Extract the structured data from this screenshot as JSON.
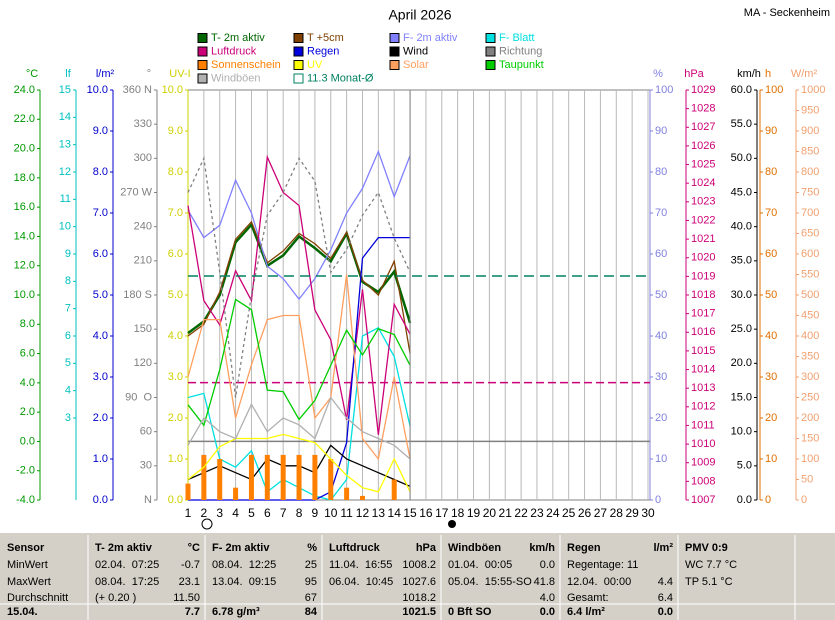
{
  "chart_data": {
    "type": "line",
    "title": "April 2026",
    "subtitle": "MA - Seckenheim",
    "x": [
      1,
      2,
      3,
      4,
      5,
      6,
      7,
      8,
      9,
      10,
      11,
      12,
      13,
      14,
      15
    ],
    "xlim": [
      1,
      30
    ],
    "xticks": [
      1,
      2,
      3,
      4,
      5,
      6,
      7,
      8,
      9,
      10,
      11,
      12,
      13,
      14,
      15,
      16,
      17,
      18,
      19,
      20,
      21,
      22,
      23,
      24,
      25,
      26,
      27,
      28,
      29,
      30
    ],
    "grid": true,
    "axes": [
      {
        "label": "°C",
        "color": "#009900",
        "lim": [
          -4,
          24
        ],
        "ticks": [
          {
            "value": -4,
            "label": "-4.0"
          },
          {
            "value": -2,
            "label": "-2.0"
          },
          {
            "value": 0,
            "label": "0.0"
          },
          {
            "value": 2,
            "label": "2.0"
          },
          {
            "value": 4,
            "label": "4.0"
          },
          {
            "value": 6,
            "label": "6.0"
          },
          {
            "value": 8,
            "label": "8.0"
          },
          {
            "value": 10,
            "label": "10.0"
          },
          {
            "value": 12,
            "label": "12.0"
          },
          {
            "value": 14,
            "label": "14.0"
          },
          {
            "value": 16,
            "label": "16.0"
          },
          {
            "value": 18,
            "label": "18.0"
          },
          {
            "value": 20,
            "label": "20.0"
          },
          {
            "value": 22,
            "label": "22.0"
          },
          {
            "value": 24,
            "label": "24.0"
          }
        ]
      },
      {
        "label": "lf",
        "color": "#00c0c0",
        "lim": [
          0,
          15
        ],
        "ticks": [
          3,
          4,
          5,
          6,
          7,
          8,
          9,
          10,
          11,
          12,
          13,
          14,
          15
        ]
      },
      {
        "label": "l/m²",
        "color": "#0000cc",
        "lim": [
          0,
          10
        ],
        "ticks": [
          {
            "value": 0,
            "label": "0.0"
          },
          {
            "value": 1,
            "label": "1.0"
          },
          {
            "value": 2,
            "label": "2.0"
          },
          {
            "value": 3,
            "label": "3.0"
          },
          {
            "value": 4,
            "label": "4.0"
          },
          {
            "value": 5,
            "label": "5.0"
          },
          {
            "value": 6,
            "label": "6.0"
          },
          {
            "value": 7,
            "label": "7.0"
          },
          {
            "value": 8,
            "label": "8.0"
          },
          {
            "value": 9,
            "label": "9.0"
          },
          {
            "value": 10,
            "label": "10.0"
          }
        ]
      },
      {
        "label": "°",
        "color": "#808080",
        "lim": [
          0,
          360
        ],
        "ticks": [
          {
            "value": 0,
            "label": "N"
          },
          30,
          60,
          {
            "value": 90,
            "label": "90  O"
          },
          120,
          150,
          {
            "value": 180,
            "label": "180 S"
          },
          210,
          240,
          {
            "value": 270,
            "label": "270 W"
          },
          300,
          330,
          {
            "value": 360,
            "label": "360 N"
          }
        ]
      },
      {
        "label": "UV-I",
        "color": "#d0d000",
        "lim": [
          0,
          10
        ],
        "ticks": [
          {
            "value": 0,
            "label": "0.0"
          },
          {
            "value": 1,
            "label": "1.0"
          },
          {
            "value": 2,
            "label": "2.0"
          },
          {
            "value": 3,
            "label": "3.0"
          },
          {
            "value": 4,
            "label": "4.0"
          },
          {
            "value": 5,
            "label": "5.0"
          },
          {
            "value": 6,
            "label": "6.0"
          },
          {
            "value": 7,
            "label": "7.0"
          },
          {
            "value": 8,
            "label": "8.0"
          },
          {
            "value": 9,
            "label": "9.0"
          },
          {
            "value": 10,
            "label": "10.0"
          }
        ]
      },
      {
        "label": "%",
        "color": "#8080e0",
        "lim": [
          0,
          100
        ],
        "ticks": [
          0,
          10,
          20,
          30,
          40,
          50,
          60,
          70,
          80,
          90,
          100
        ]
      },
      {
        "label": "hPa",
        "color": "#cc0077",
        "lim": [
          1007,
          1029
        ],
        "ticks": [
          1007,
          1008,
          1009,
          1010,
          1011,
          1012,
          1013,
          1014,
          1015,
          1016,
          1017,
          1018,
          1019,
          1020,
          1021,
          1022,
          1023,
          1024,
          1025,
          1026,
          1027,
          1028,
          1029
        ]
      },
      {
        "label": "km/h",
        "color": "#000000",
        "lim": [
          0,
          60
        ],
        "ticks": [
          {
            "value": 0,
            "label": "0.0"
          },
          {
            "value": 5,
            "label": "5.0"
          },
          {
            "value": 10,
            "label": "10.0"
          },
          {
            "value": 15,
            "label": "15.0"
          },
          {
            "value": 20,
            "label": "20.0"
          },
          {
            "value": 25,
            "label": "25.0"
          },
          {
            "value": 30,
            "label": "30.0"
          },
          {
            "value": 35,
            "label": "35.0"
          },
          {
            "value": 40,
            "label": "40.0"
          },
          {
            "value": 45,
            "label": "45.0"
          },
          {
            "value": 50,
            "label": "50.0"
          },
          {
            "value": 55,
            "label": "55.0"
          },
          {
            "value": 60,
            "label": "60.0"
          }
        ]
      },
      {
        "label": "h",
        "color": "#e07000",
        "lim": [
          0,
          100
        ],
        "ticks": [
          0,
          10,
          20,
          30,
          40,
          50,
          60,
          70,
          80,
          90,
          100
        ]
      },
      {
        "label": "W/m²",
        "color": "#f0a070",
        "lim": [
          0,
          1000
        ],
        "ticks": [
          0,
          50,
          100,
          150,
          200,
          250,
          300,
          350,
          400,
          450,
          500,
          550,
          600,
          650,
          700,
          750,
          800,
          850,
          900,
          950,
          1000
        ]
      }
    ],
    "series": [
      {
        "name": "T- 2m aktiv",
        "color": "#006600",
        "axis": 0,
        "style": "thick",
        "values": [
          7.4,
          8.2,
          10.0,
          13.6,
          14.8,
          12.0,
          12.7,
          14.0,
          13.2,
          12.3,
          14.2,
          10.9,
          10.2,
          11.6,
          8.1
        ]
      },
      {
        "name": "T +5cm",
        "color": "#804000",
        "axis": 0,
        "style": "solid",
        "values": [
          7.2,
          8.0,
          10.2,
          13.8,
          15.0,
          12.2,
          13.0,
          14.2,
          13.5,
          12.5,
          14.3,
          11.0,
          10.0,
          12.3,
          6.0
        ]
      },
      {
        "name": "F- 2m aktiv",
        "color": "#8080ff",
        "axis": 5,
        "style": "solid",
        "values": [
          70.7,
          64,
          67,
          78,
          70,
          57,
          54,
          49,
          54,
          61,
          70,
          76,
          85,
          74,
          84
        ]
      },
      {
        "name": "F- Blatt",
        "color": "#00e0e0",
        "axis": 5,
        "style": "solid",
        "values": [
          25,
          26,
          10,
          8,
          12,
          2,
          5,
          3,
          1,
          0,
          5,
          40,
          42,
          35,
          18
        ]
      },
      {
        "name": "Luftdruck",
        "color": "#cc0077",
        "axis": 6,
        "style": "solid",
        "values": [
          1022.8,
          1017.7,
          1016.4,
          1019.3,
          1017.7,
          1025.4,
          1023.5,
          1022.8,
          1017.2,
          1015.6,
          1011.3,
          1018.3,
          1010.5,
          1017.5,
          1015.9
        ]
      },
      {
        "name": "Regen",
        "color": "#0000dd",
        "axis": 2,
        "style": "solid",
        "values": [
          0,
          0,
          0,
          0,
          0,
          0,
          0,
          0,
          0,
          0.2,
          1.4,
          5.9,
          6.4,
          6.4,
          6.4
        ]
      },
      {
        "name": "Wind",
        "color": "#000000",
        "axis": 7,
        "style": "solid",
        "values": [
          3,
          4,
          5,
          4,
          3,
          6,
          5,
          5,
          4,
          8,
          6,
          5,
          4,
          3,
          2
        ]
      },
      {
        "name": "Richtung",
        "color": "#808080",
        "axis": 3,
        "style": "dashed",
        "values": [
          270,
          300,
          200,
          90,
          180,
          250,
          270,
          300,
          280,
          200,
          220,
          250,
          270,
          230,
          200
        ]
      },
      {
        "name": "Sonnenschein",
        "color": "#ff8000",
        "axis": 8,
        "style": "bar",
        "values": [
          4,
          11,
          10,
          3,
          11,
          11,
          11,
          11,
          11,
          10,
          3,
          1,
          0,
          5,
          0
        ]
      },
      {
        "name": "UV",
        "color": "#ffff00",
        "axis": 4,
        "style": "solid",
        "values": [
          0.5,
          0.8,
          1.3,
          1.5,
          1.5,
          1.5,
          1.6,
          1.5,
          1.4,
          1.0,
          0.6,
          0.3,
          0.2,
          1.0,
          0.2
        ]
      },
      {
        "name": "Solar",
        "color": "#ffa060",
        "axis": 9,
        "style": "solid",
        "values": [
          300,
          440,
          440,
          200,
          330,
          440,
          450,
          450,
          200,
          250,
          550,
          150,
          100,
          300,
          100
        ]
      },
      {
        "name": "Taupunkt",
        "color": "#00cc00",
        "axis": 0,
        "style": "solid",
        "values": [
          2.5,
          1.1,
          4.9,
          9.7,
          9.0,
          3.5,
          3.4,
          1.5,
          2.8,
          5.2,
          7.6,
          5.9,
          7.7,
          7.3,
          5.2
        ]
      },
      {
        "name": "Windböen",
        "color": "#b0b0b0",
        "axis": 7,
        "style": "solid",
        "values": [
          8,
          12,
          10,
          9,
          14,
          10,
          12,
          11,
          9,
          15,
          12,
          10,
          9,
          8,
          6
        ]
      },
      {
        "name": "11.3 Monat-Ø",
        "color": "#008060",
        "axis": 0,
        "style": "hline",
        "value": 11.3
      }
    ],
    "reference_lines": [
      {
        "axis": 0,
        "value": 0,
        "color": "#808080"
      },
      {
        "axis": 6,
        "value": 1013.3,
        "color": "#cc0077"
      }
    ]
  },
  "table": {
    "columns": [
      {
        "rows": [
          {
            "left": "Sensor"
          },
          {
            "left": "MinWert"
          },
          {
            "left": "MaxWert"
          },
          {
            "left": "Durchschnitt"
          },
          {
            "left": "15.04."
          }
        ]
      },
      {
        "rows": [
          {
            "left": "T- 2m aktiv",
            "right": "°C"
          },
          {
            "left": "02.04.  07:25",
            "right": "-0.7"
          },
          {
            "left": "08.04.  17:25",
            "right": "23.1"
          },
          {
            "left": "(+ 0.20 )",
            "right": "11.50"
          },
          {
            "right": "7.7"
          }
        ]
      },
      {
        "rows": [
          {
            "left": "F- 2m aktiv",
            "right": "%"
          },
          {
            "left": "08.04.  12:25",
            "right": "25"
          },
          {
            "left": "13.04.  09:15",
            "right": "95"
          },
          {
            "right": "67"
          },
          {
            "left": "6.78 g/m³",
            "right": "84"
          }
        ]
      },
      {
        "rows": [
          {
            "left": "Luftdruck",
            "right": "hPa"
          },
          {
            "left": "11.04.  16:55",
            "right": "1008.2"
          },
          {
            "left": "06.04.  10:45",
            "right": "1027.6"
          },
          {
            "right": "1018.2"
          },
          {
            "right": "1021.5"
          }
        ]
      },
      {
        "rows": [
          {
            "left": "Windböen",
            "right": "km/h"
          },
          {
            "left": "01.04.  00:05",
            "right": "0.0"
          },
          {
            "left": "05.04.  15:55-SO",
            "right": "41.8"
          },
          {
            "right": "4.0"
          },
          {
            "left": "0 Bft SO",
            "right": "0.0"
          }
        ]
      },
      {
        "rows": [
          {
            "left": "Regen",
            "right": "l/m²"
          },
          {
            "left": "Regentage: 11"
          },
          {
            "left": "12.04.  00:00",
            "right": "4.4"
          },
          {
            "left": "Gesamt:",
            "right": "6.4"
          },
          {
            "left": "6.4 l/m²",
            "right": "0.0"
          }
        ]
      },
      {
        "rows": [
          {
            "left": "PMV 0:9"
          },
          {
            "left": "WC 7.7 °C"
          },
          {
            "left": "TP 5.1 °C"
          }
        ]
      }
    ]
  }
}
